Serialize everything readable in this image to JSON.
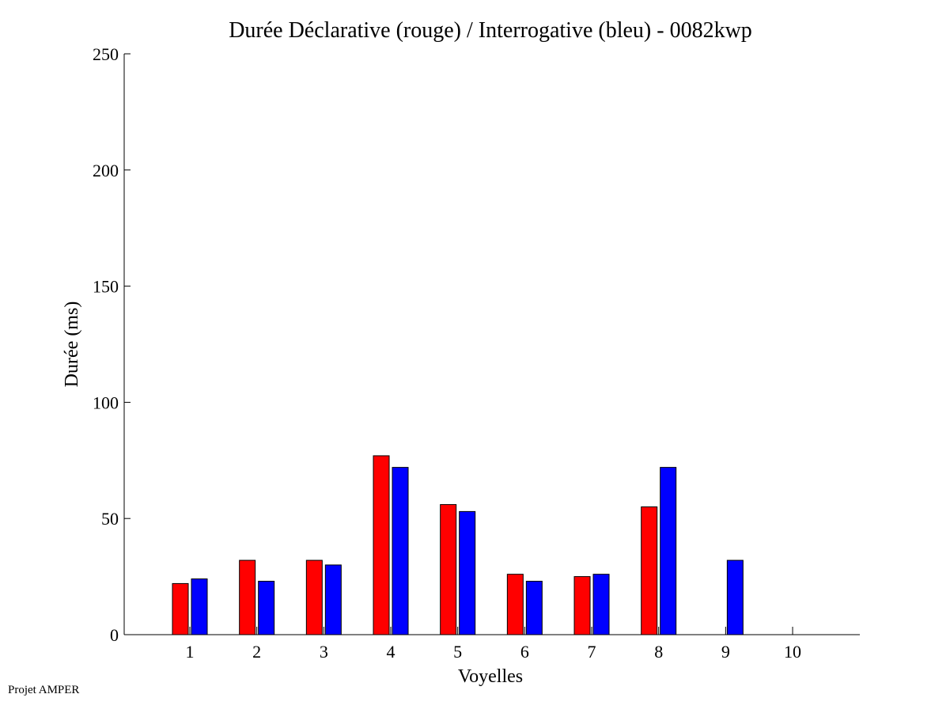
{
  "footer": {
    "credit": "Projet AMPER"
  },
  "colors": {
    "declarative": "#ff0000",
    "interrogative": "#0000ff",
    "axis": "#000000",
    "bar_stroke": "#000000"
  },
  "chart_data": {
    "type": "bar",
    "title": "Durée Déclarative (rouge) / Interrogative (bleu) - 0082kwp",
    "xlabel": "Voyelles",
    "ylabel": "Durée (ms)",
    "categories": [
      "1",
      "2",
      "3",
      "4",
      "5",
      "6",
      "7",
      "8",
      "9",
      "10"
    ],
    "ylim": [
      0,
      250
    ],
    "yticks": [
      0,
      50,
      100,
      150,
      200,
      250
    ],
    "grid": false,
    "legend": "none",
    "series": [
      {
        "color": "#ff0000",
        "values": [
          22,
          32,
          32,
          77,
          56,
          26,
          25,
          55,
          null,
          null
        ]
      },
      {
        "color": "#0000ff",
        "values": [
          24,
          23,
          30,
          72,
          53,
          23,
          26,
          72,
          32,
          null
        ]
      }
    ]
  }
}
